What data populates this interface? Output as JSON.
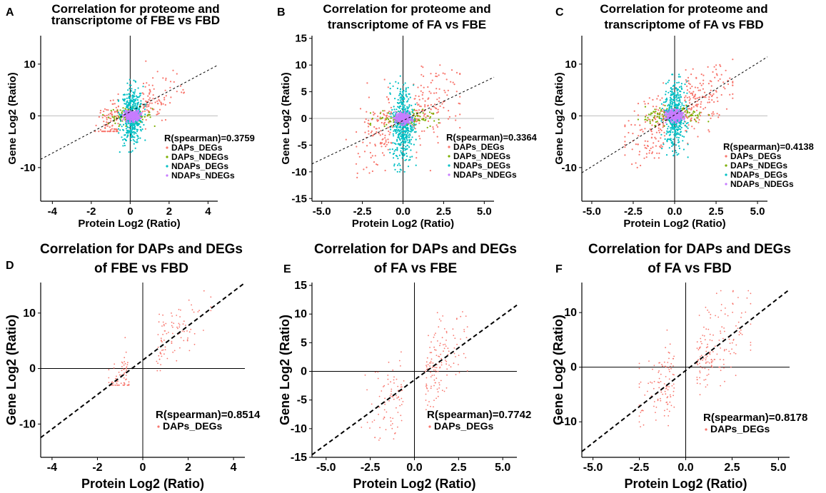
{
  "colors": {
    "DAPs_DEGs": "#f8766d",
    "DAPs_NDEGs": "#7cae00",
    "NDAPs_DEGs": "#00bfc4",
    "NDAPs_NDEGs": "#c77cff"
  },
  "chart_data": [
    {
      "panel": "A",
      "type": "scatter",
      "title": [
        "Correlation for proteome and",
        "transcriptome of FBE vs FBD"
      ],
      "xlabel": "Protein Log2 (Ratio)",
      "ylabel": "Gene Log2 (Ratio)",
      "xlim": [
        -4.6,
        4.5
      ],
      "ylim": [
        -16.5,
        15.5
      ],
      "xticks": [
        -4,
        -2,
        0,
        2,
        4
      ],
      "yticks": [
        -10,
        0,
        10
      ],
      "grid": false,
      "legend_position": "right",
      "annotation": "R(spearman)=0.3759",
      "fit_line": {
        "slope": 2.0,
        "intercept": 0.8
      },
      "series": [
        {
          "name": "DAPs_DEGs",
          "n": 180,
          "x_range": [
            -1.8,
            2.8
          ],
          "y_range": [
            -3,
            12
          ]
        },
        {
          "name": "DAPs_NDEGs",
          "n": 110,
          "x_range": [
            -1.4,
            1.4
          ],
          "y_range": [
            -2,
            2
          ]
        },
        {
          "name": "NDAPs_DEGs",
          "n": 420,
          "x_range": [
            -0.6,
            0.8
          ],
          "y_range": [
            -7,
            7
          ]
        },
        {
          "name": "NDAPs_NDEGs",
          "n": 320,
          "x_range": [
            -0.4,
            0.6
          ],
          "y_range": [
            -1.2,
            1.2
          ]
        }
      ]
    },
    {
      "panel": "B",
      "type": "scatter",
      "title": [
        "Correlation for proteome and",
        "transcriptome of FA vs FBE"
      ],
      "xlabel": "Protein Log2 (Ratio)",
      "ylabel": "Gene Log2 (Ratio)",
      "xlim": [
        -5.6,
        5.6
      ],
      "ylim": [
        -15.5,
        15.5
      ],
      "xticks": [
        -5.0,
        -2.5,
        0.0,
        2.5,
        5.0
      ],
      "yticks": [
        -15,
        -10,
        -5,
        0,
        5,
        10,
        15
      ],
      "grid": false,
      "legend_position": "right",
      "annotation": "R(spearman)=0.3364",
      "fit_line": {
        "slope": 1.45,
        "intercept": -0.4
      },
      "series": [
        {
          "name": "DAPs_DEGs",
          "n": 260,
          "x_range": [
            -3.5,
            3.5
          ],
          "y_range": [
            -12,
            10
          ]
        },
        {
          "name": "DAPs_NDEGs",
          "n": 130,
          "x_range": [
            -2.0,
            2.2
          ],
          "y_range": [
            -2,
            2
          ]
        },
        {
          "name": "NDAPs_DEGs",
          "n": 460,
          "x_range": [
            -0.8,
            0.8
          ],
          "y_range": [
            -10,
            8
          ]
        },
        {
          "name": "NDAPs_NDEGs",
          "n": 340,
          "x_range": [
            -0.6,
            0.6
          ],
          "y_range": [
            -1.3,
            1.3
          ]
        }
      ]
    },
    {
      "panel": "C",
      "type": "scatter",
      "title": [
        "Correlation for proteome and",
        "transcriptome of FA vs FBD"
      ],
      "xlabel": "Protein Log2 (Ratio)",
      "ylabel": "Gene Log2 (Ratio)",
      "xlim": [
        -5.6,
        5.6
      ],
      "ylim": [
        -16.5,
        15.5
      ],
      "xticks": [
        -5.0,
        -2.5,
        0.0,
        2.5,
        5.0
      ],
      "yticks": [
        -10,
        0,
        10
      ],
      "grid": false,
      "legend_position": "right",
      "annotation": "R(spearman)=0.4138",
      "fit_line": {
        "slope": 2.0,
        "intercept": 0.2
      },
      "series": [
        {
          "name": "DAPs_DEGs",
          "n": 300,
          "x_range": [
            -3.0,
            3.5
          ],
          "y_range": [
            -10,
            12
          ]
        },
        {
          "name": "DAPs_NDEGs",
          "n": 140,
          "x_range": [
            -2.2,
            2.2
          ],
          "y_range": [
            -2,
            2
          ]
        },
        {
          "name": "NDAPs_DEGs",
          "n": 420,
          "x_range": [
            -0.8,
            0.8
          ],
          "y_range": [
            -8,
            8
          ]
        },
        {
          "name": "NDAPs_NDEGs",
          "n": 340,
          "x_range": [
            -0.6,
            0.6
          ],
          "y_range": [
            -1.3,
            1.3
          ]
        }
      ]
    },
    {
      "panel": "D",
      "type": "scatter",
      "title": [
        "Correlation for DAPs and DEGs",
        "of FBE vs FBD"
      ],
      "xlabel": "Protein Log2 (Ratio)",
      "ylabel": "Gene Log2 (Ratio)",
      "xlim": [
        -4.5,
        4.5
      ],
      "ylim": [
        -16.0,
        15.5
      ],
      "xticks": [
        -4,
        -2,
        0,
        2,
        4
      ],
      "yticks": [
        -10,
        0,
        10
      ],
      "grid": false,
      "legend_position": "right",
      "annotation": "R(spearman)=0.8514",
      "fit_line": {
        "slope": 3.1,
        "intercept": 1.5
      },
      "series": [
        {
          "name": "DAPs_DEGs",
          "n": 160,
          "x_range": [
            -1.5,
            3.0
          ],
          "y_range": [
            -3,
            14
          ]
        }
      ]
    },
    {
      "panel": "E",
      "type": "scatter",
      "title": [
        "Correlation for DAPs and DEGs",
        "of FA vs FBE"
      ],
      "xlabel": "Protein Log2 (Ratio)",
      "ylabel": "Gene Log2 (Ratio)",
      "xlim": [
        -5.8,
        5.8
      ],
      "ylim": [
        -15.0,
        15.5
      ],
      "xticks": [
        -5.0,
        -2.5,
        0.0,
        2.5,
        5.0
      ],
      "yticks": [
        -15,
        -10,
        -5,
        0,
        5,
        10,
        15
      ],
      "grid": false,
      "legend_position": "right",
      "annotation": "R(spearman)=0.7742",
      "fit_line": {
        "slope": 2.25,
        "intercept": -1.5
      },
      "series": [
        {
          "name": "DAPs_DEGs",
          "n": 220,
          "x_range": [
            -3.0,
            3.0
          ],
          "y_range": [
            -12,
            11
          ]
        }
      ]
    },
    {
      "panel": "F",
      "type": "scatter",
      "title": [
        "Correlation for DAPs and DEGs",
        "of FA vs FBD"
      ],
      "xlabel": "Protein Log2 (Ratio)",
      "ylabel": "Gene Log2 (Ratio)",
      "xlim": [
        -5.6,
        5.6
      ],
      "ylim": [
        -16.5,
        15.5
      ],
      "xticks": [
        -5.0,
        -2.5,
        0.0,
        2.5,
        5.0
      ],
      "yticks": [
        -10,
        0,
        10
      ],
      "grid": false,
      "legend_position": "right",
      "annotation": "R(spearman)=0.8178",
      "fit_line": {
        "slope": 2.65,
        "intercept": -0.6
      },
      "series": [
        {
          "name": "DAPs_DEGs",
          "n": 260,
          "x_range": [
            -2.5,
            3.5
          ],
          "y_range": [
            -14,
            14
          ]
        }
      ]
    }
  ]
}
